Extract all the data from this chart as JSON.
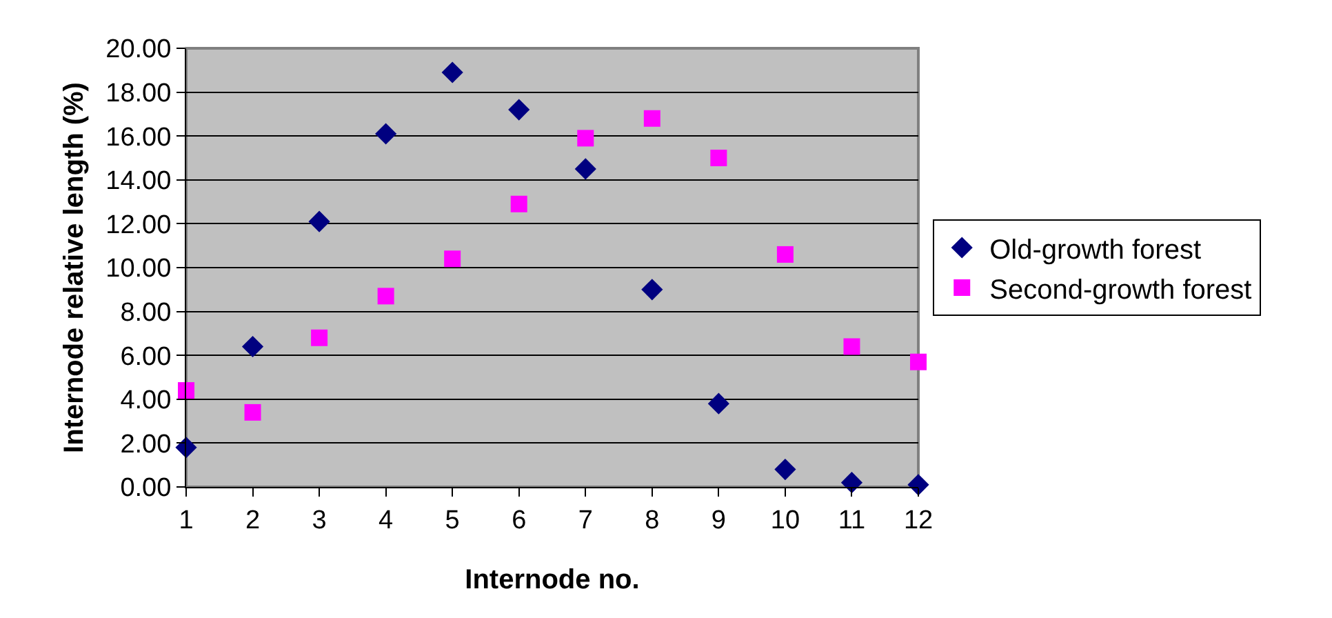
{
  "chart_data": {
    "type": "scatter",
    "xlabel": "Internode no.",
    "ylabel": "Internode relative length (%)",
    "x": [
      1,
      2,
      3,
      4,
      5,
      6,
      7,
      8,
      9,
      10,
      11,
      12
    ],
    "xlim": [
      1,
      12
    ],
    "xticks": [
      1,
      2,
      3,
      4,
      5,
      6,
      7,
      8,
      9,
      10,
      11,
      12
    ],
    "ylim": [
      0,
      20
    ],
    "yticks": [
      {
        "value": 0,
        "label": "0.00"
      },
      {
        "value": 2,
        "label": "2.00"
      },
      {
        "value": 4,
        "label": "4.00"
      },
      {
        "value": 6,
        "label": "6.00"
      },
      {
        "value": 8,
        "label": "8.00"
      },
      {
        "value": 10,
        "label": "10.00"
      },
      {
        "value": 12,
        "label": "12.00"
      },
      {
        "value": 14,
        "label": "14.00"
      },
      {
        "value": 16,
        "label": "16.00"
      },
      {
        "value": 18,
        "label": "18.00"
      },
      {
        "value": 20,
        "label": "20.00"
      }
    ],
    "grid": "y",
    "legend": "right",
    "series": [
      {
        "name": "Old-growth forest",
        "color": "#000080",
        "marker": "diamond",
        "values": [
          1.8,
          6.4,
          12.1,
          16.1,
          18.9,
          17.2,
          14.5,
          9.0,
          3.8,
          0.8,
          0.2,
          0.1
        ]
      },
      {
        "name": "Second-growth forest",
        "color": "#ff00ff",
        "marker": "square",
        "values": [
          4.4,
          3.4,
          6.8,
          8.7,
          10.4,
          12.9,
          15.9,
          16.8,
          15.0,
          10.6,
          6.4,
          5.7
        ]
      }
    ]
  }
}
